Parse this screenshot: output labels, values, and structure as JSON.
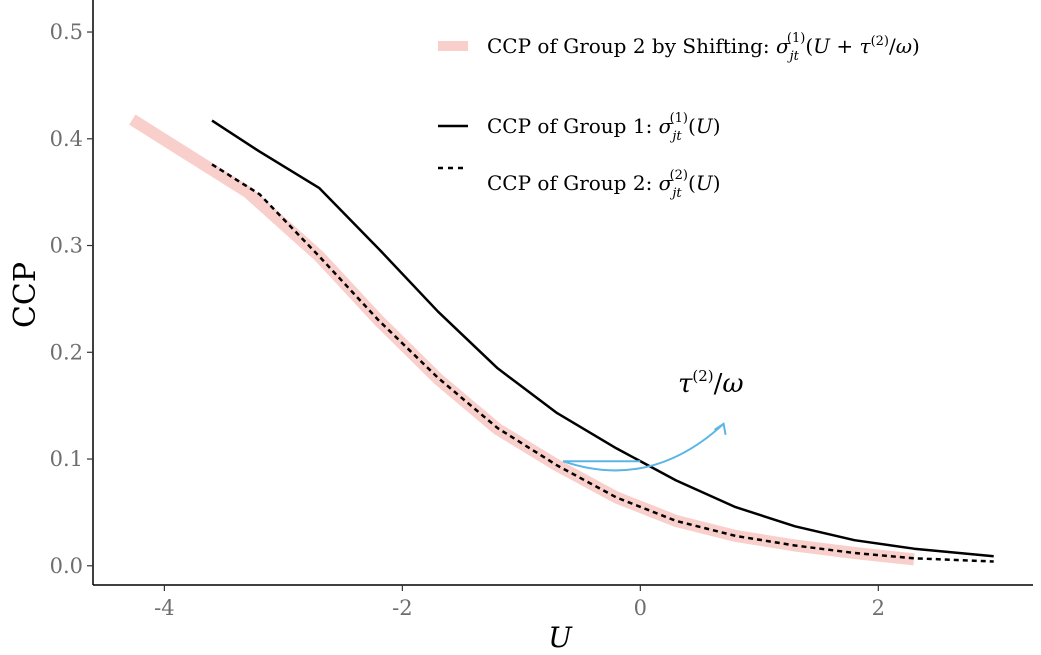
{
  "chart_data": {
    "type": "line",
    "title": "",
    "xlabel": "U",
    "ylabel": "CCP",
    "xlim": [
      -4.6,
      3.3
    ],
    "ylim": [
      -0.018,
      0.53
    ],
    "x_ticks": [
      -4,
      -2,
      0,
      2
    ],
    "x_tick_labels": [
      "-4",
      "-2",
      "0",
      "2"
    ],
    "y_ticks": [
      0.0,
      0.1,
      0.2,
      0.3,
      0.4,
      0.5
    ],
    "y_tick_labels": [
      "0.0",
      "0.1",
      "0.2",
      "0.3",
      "0.4",
      "0.5"
    ],
    "grid": false,
    "legend_position": "top-right",
    "legend": [
      {
        "series": "shifted",
        "label": "CCP of Group 2 by Shifting: σjt(1)(U + τ(2)/ω)"
      },
      {
        "series": "group1",
        "label": "CCP of Group 1: σjt(1)(U)"
      },
      {
        "series": "group2",
        "label": "CCP of Group 2: σjt(2)(U)"
      }
    ],
    "series": [
      {
        "key": "shifted",
        "color": "#f9cfcb",
        "style": "thick",
        "x": [
          -4.27,
          -3.9,
          -3.3,
          -2.7,
          -2.2,
          -1.7,
          -1.2,
          -0.7,
          -0.2,
          0.3,
          0.8,
          1.3,
          1.8,
          2.3
        ],
        "y": [
          0.418,
          0.392,
          0.35,
          0.29,
          0.23,
          0.175,
          0.128,
          0.094,
          0.064,
          0.042,
          0.028,
          0.019,
          0.012,
          0.006
        ]
      },
      {
        "key": "group1",
        "color": "#000000",
        "style": "solid",
        "x": [
          -3.6,
          -3.2,
          -2.7,
          -2.2,
          -1.7,
          -1.2,
          -0.7,
          -0.2,
          0.3,
          0.8,
          1.3,
          1.8,
          2.3,
          2.97
        ],
        "y": [
          0.417,
          0.388,
          0.354,
          0.297,
          0.238,
          0.185,
          0.143,
          0.11,
          0.08,
          0.055,
          0.037,
          0.024,
          0.016,
          0.009
        ]
      },
      {
        "key": "group2",
        "color": "#000000",
        "style": "dashed",
        "x": [
          -3.6,
          -3.2,
          -2.7,
          -2.2,
          -1.7,
          -1.2,
          -0.7,
          -0.2,
          0.3,
          0.8,
          1.3,
          1.8,
          2.3,
          2.97
        ],
        "y": [
          0.376,
          0.348,
          0.29,
          0.23,
          0.176,
          0.129,
          0.094,
          0.064,
          0.042,
          0.028,
          0.019,
          0.012,
          0.007,
          0.004
        ]
      }
    ],
    "annotation": {
      "text": "τ(2)/ω",
      "color": "#5bb5e6",
      "arrow_from": [
        -0.65,
        0.098
      ],
      "arrow_to": [
        0.7,
        0.133
      ]
    }
  }
}
